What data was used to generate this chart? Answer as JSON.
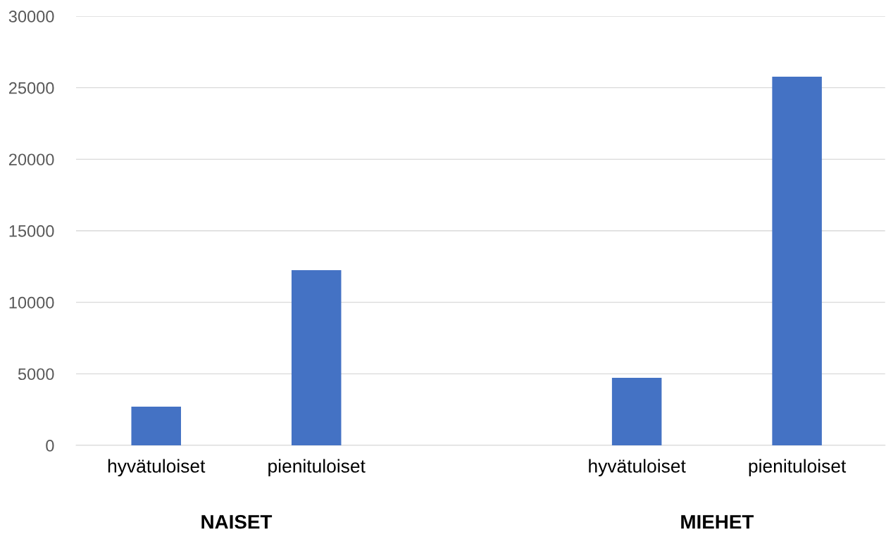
{
  "chart_data": {
    "type": "bar",
    "categories": [
      "hyvätuloiset",
      "pienituloiset",
      null,
      "hyvätuloiset",
      "pienituloiset"
    ],
    "values": [
      2700,
      12250,
      null,
      4720,
      25770
    ],
    "color": "#4472c4",
    "ylim": [
      0,
      30000
    ],
    "yticks": [
      0,
      5000,
      10000,
      15000,
      20000,
      25000,
      30000
    ],
    "grid": "y",
    "annotations": [
      "NAISET",
      "MIEHET"
    ]
  }
}
